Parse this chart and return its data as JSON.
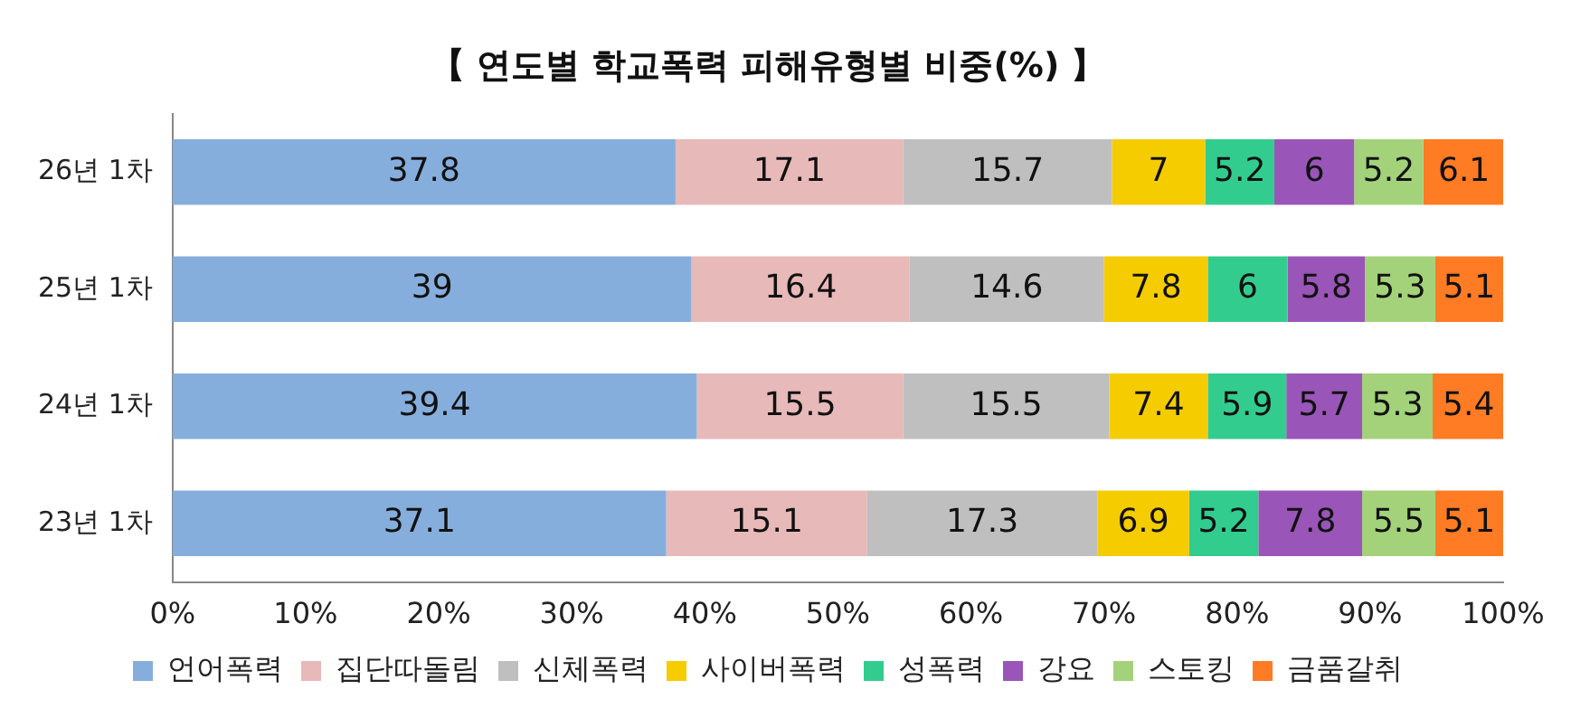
{
  "chart_data": {
    "type": "bar",
    "title": "【 연도별 학교폭력 피해유형별 비중(%) 】",
    "orientation": "horizontal",
    "stacked": true,
    "categories": [
      "26년 1차",
      "25년 1차",
      "24년 1차",
      "23년 1차"
    ],
    "series": [
      {
        "name": "언어폭력",
        "color": "#86aedc",
        "values": [
          37.8,
          39,
          39.4,
          37.1
        ]
      },
      {
        "name": "집단따돌림",
        "color": "#e8b9b9",
        "values": [
          17.1,
          16.4,
          15.5,
          15.1
        ]
      },
      {
        "name": "신체폭력",
        "color": "#bfbfbf",
        "values": [
          15.7,
          14.6,
          15.5,
          17.3
        ]
      },
      {
        "name": "사이버폭력",
        "color": "#f5cc00",
        "values": [
          7,
          7.8,
          7.4,
          6.9
        ]
      },
      {
        "name": "성폭력",
        "color": "#33cc8f",
        "values": [
          5.2,
          6,
          5.9,
          5.2
        ]
      },
      {
        "name": "강요",
        "color": "#9a55b8",
        "values": [
          6,
          5.8,
          5.7,
          7.8
        ]
      },
      {
        "name": "스토킹",
        "color": "#a3d27a",
        "values": [
          5.2,
          5.3,
          5.3,
          5.5
        ]
      },
      {
        "name": "금품갈취",
        "color": "#ff7b24",
        "values": [
          6.1,
          5.1,
          5.4,
          5.1
        ]
      }
    ],
    "xlim": [
      0,
      100
    ],
    "xticks": [
      {
        "value": 0,
        "label": "0%"
      },
      {
        "value": 10,
        "label": "10%"
      },
      {
        "value": 20,
        "label": "20%"
      },
      {
        "value": 30,
        "label": "30%"
      },
      {
        "value": 40,
        "label": "40%"
      },
      {
        "value": 50,
        "label": "50%"
      },
      {
        "value": 60,
        "label": "60%"
      },
      {
        "value": 70,
        "label": "70%"
      },
      {
        "value": 80,
        "label": "80%"
      },
      {
        "value": 90,
        "label": "90%"
      },
      {
        "value": 100,
        "label": "100%"
      }
    ],
    "data_labels": true,
    "legend": "bottom",
    "grid": false
  }
}
